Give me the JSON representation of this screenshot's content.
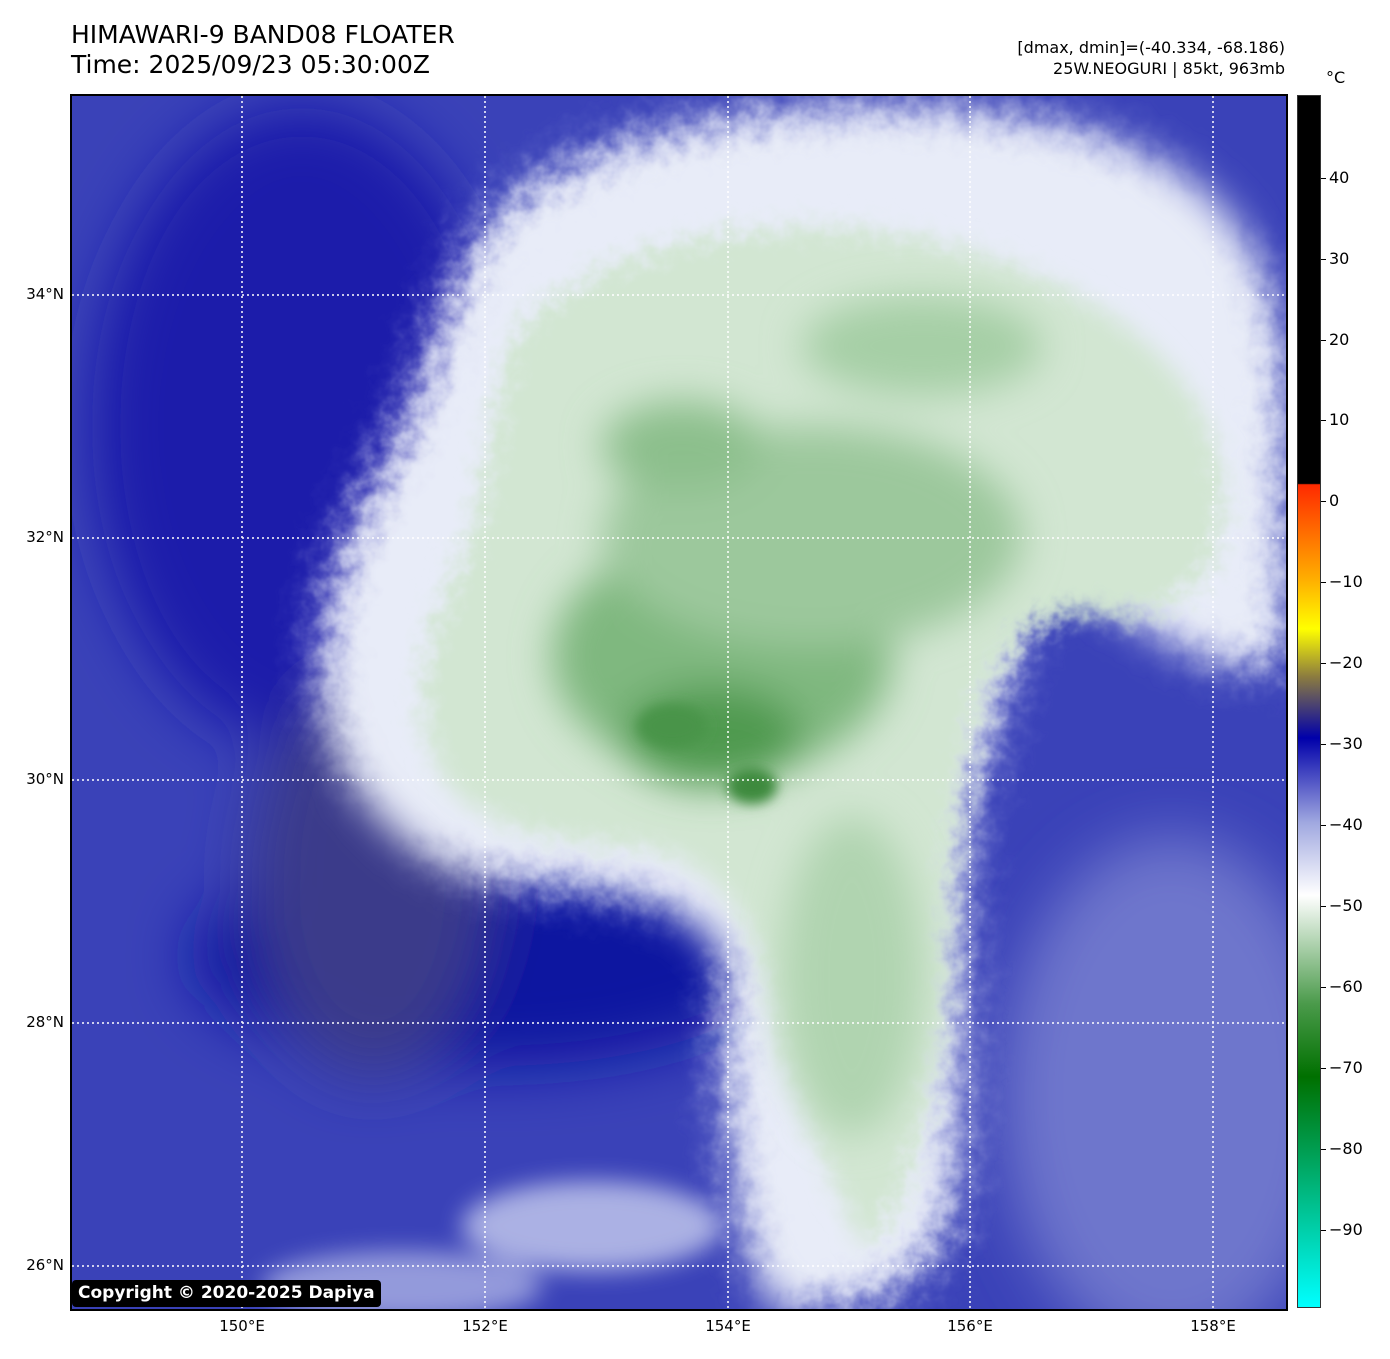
{
  "header": {
    "title": "HIMAWARI-9 BAND08 FLOATER",
    "time": "Time: 2025/09/23 05:30:00Z",
    "data_range": "[dmax, dmin]=(-40.334, -68.186)",
    "storm_info": "25W.NEOGURI | 85kt, 963mb"
  },
  "map": {
    "lat_labels": [
      "34°N",
      "32°N",
      "30°N",
      "28°N",
      "26°N"
    ],
    "lon_labels": [
      "150°E",
      "152°E",
      "154°E",
      "156°E",
      "158°E"
    ],
    "gridlines": "dotted white"
  },
  "colorbar": {
    "unit": "°C",
    "tick_labels": [
      "40",
      "30",
      "20",
      "10",
      "0",
      "−10",
      "−20",
      "−30",
      "−40",
      "−50",
      "−60",
      "−70",
      "−80",
      "−90"
    ],
    "colors": {
      "warm": "#000000",
      "zero": "#ff2a00",
      "minus10": "#ffb000",
      "minus15": "#ffff00",
      "minus20": "#8a7a40",
      "minus30": "#0000aa",
      "minus40": "#a0a8e0",
      "minus47": "#ffffff",
      "minus60": "#4a9a4a",
      "minus72": "#007000",
      "minus100": "#00ffff"
    }
  },
  "copyright": "Copyright © 2020-2025 Dapiya"
}
